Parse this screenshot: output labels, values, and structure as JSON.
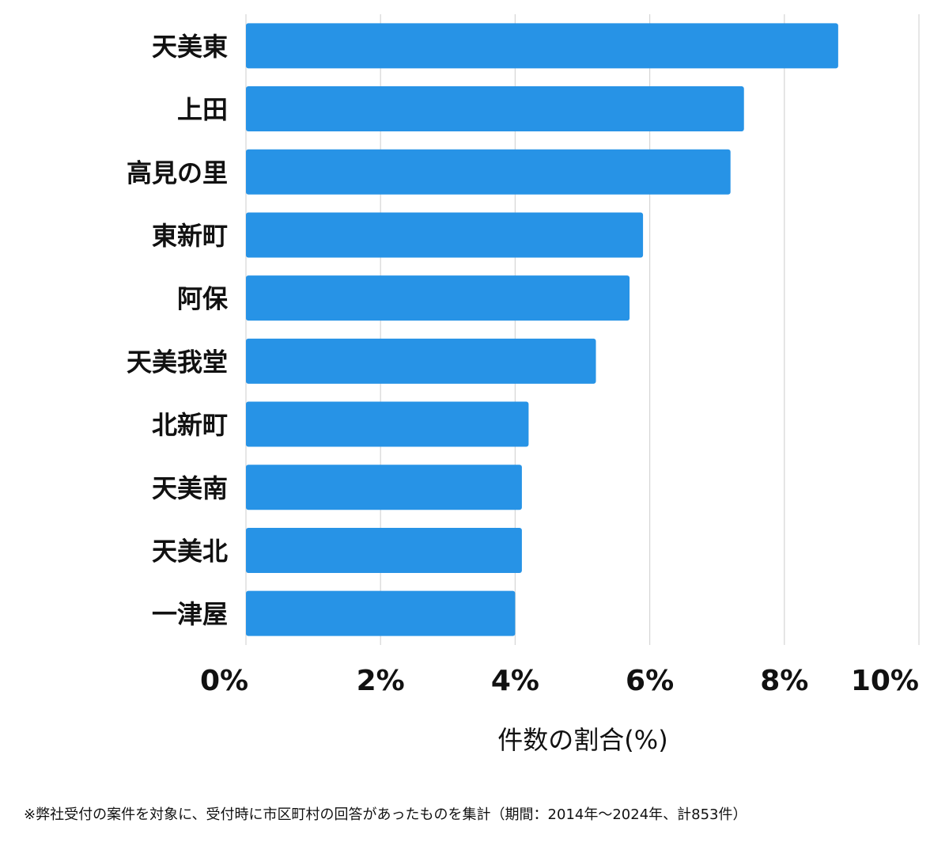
{
  "chart_data": {
    "type": "bar",
    "orientation": "horizontal",
    "categories": [
      "天美東",
      "上田",
      "高見の里",
      "東新町",
      "阿保",
      "天美我堂",
      "北新町",
      "天美南",
      "天美北",
      "一津屋"
    ],
    "values": [
      8.8,
      7.4,
      7.2,
      5.9,
      5.7,
      5.2,
      4.2,
      4.1,
      4.1,
      4.0
    ],
    "xlabel": "件数の割合(%)",
    "xlim": [
      0,
      10
    ],
    "xticks": [
      0,
      2,
      4,
      6,
      8,
      10
    ],
    "xtick_labels": [
      "0%",
      "2%",
      "4%",
      "6%",
      "8%",
      "10%"
    ],
    "grid": "vertical",
    "bar_color": "#2793e6"
  },
  "footnote": "※弊社受付の案件を対象に、受付時に市区町村の回答があったものを集計（期間：2014年～2024年、計853件）"
}
